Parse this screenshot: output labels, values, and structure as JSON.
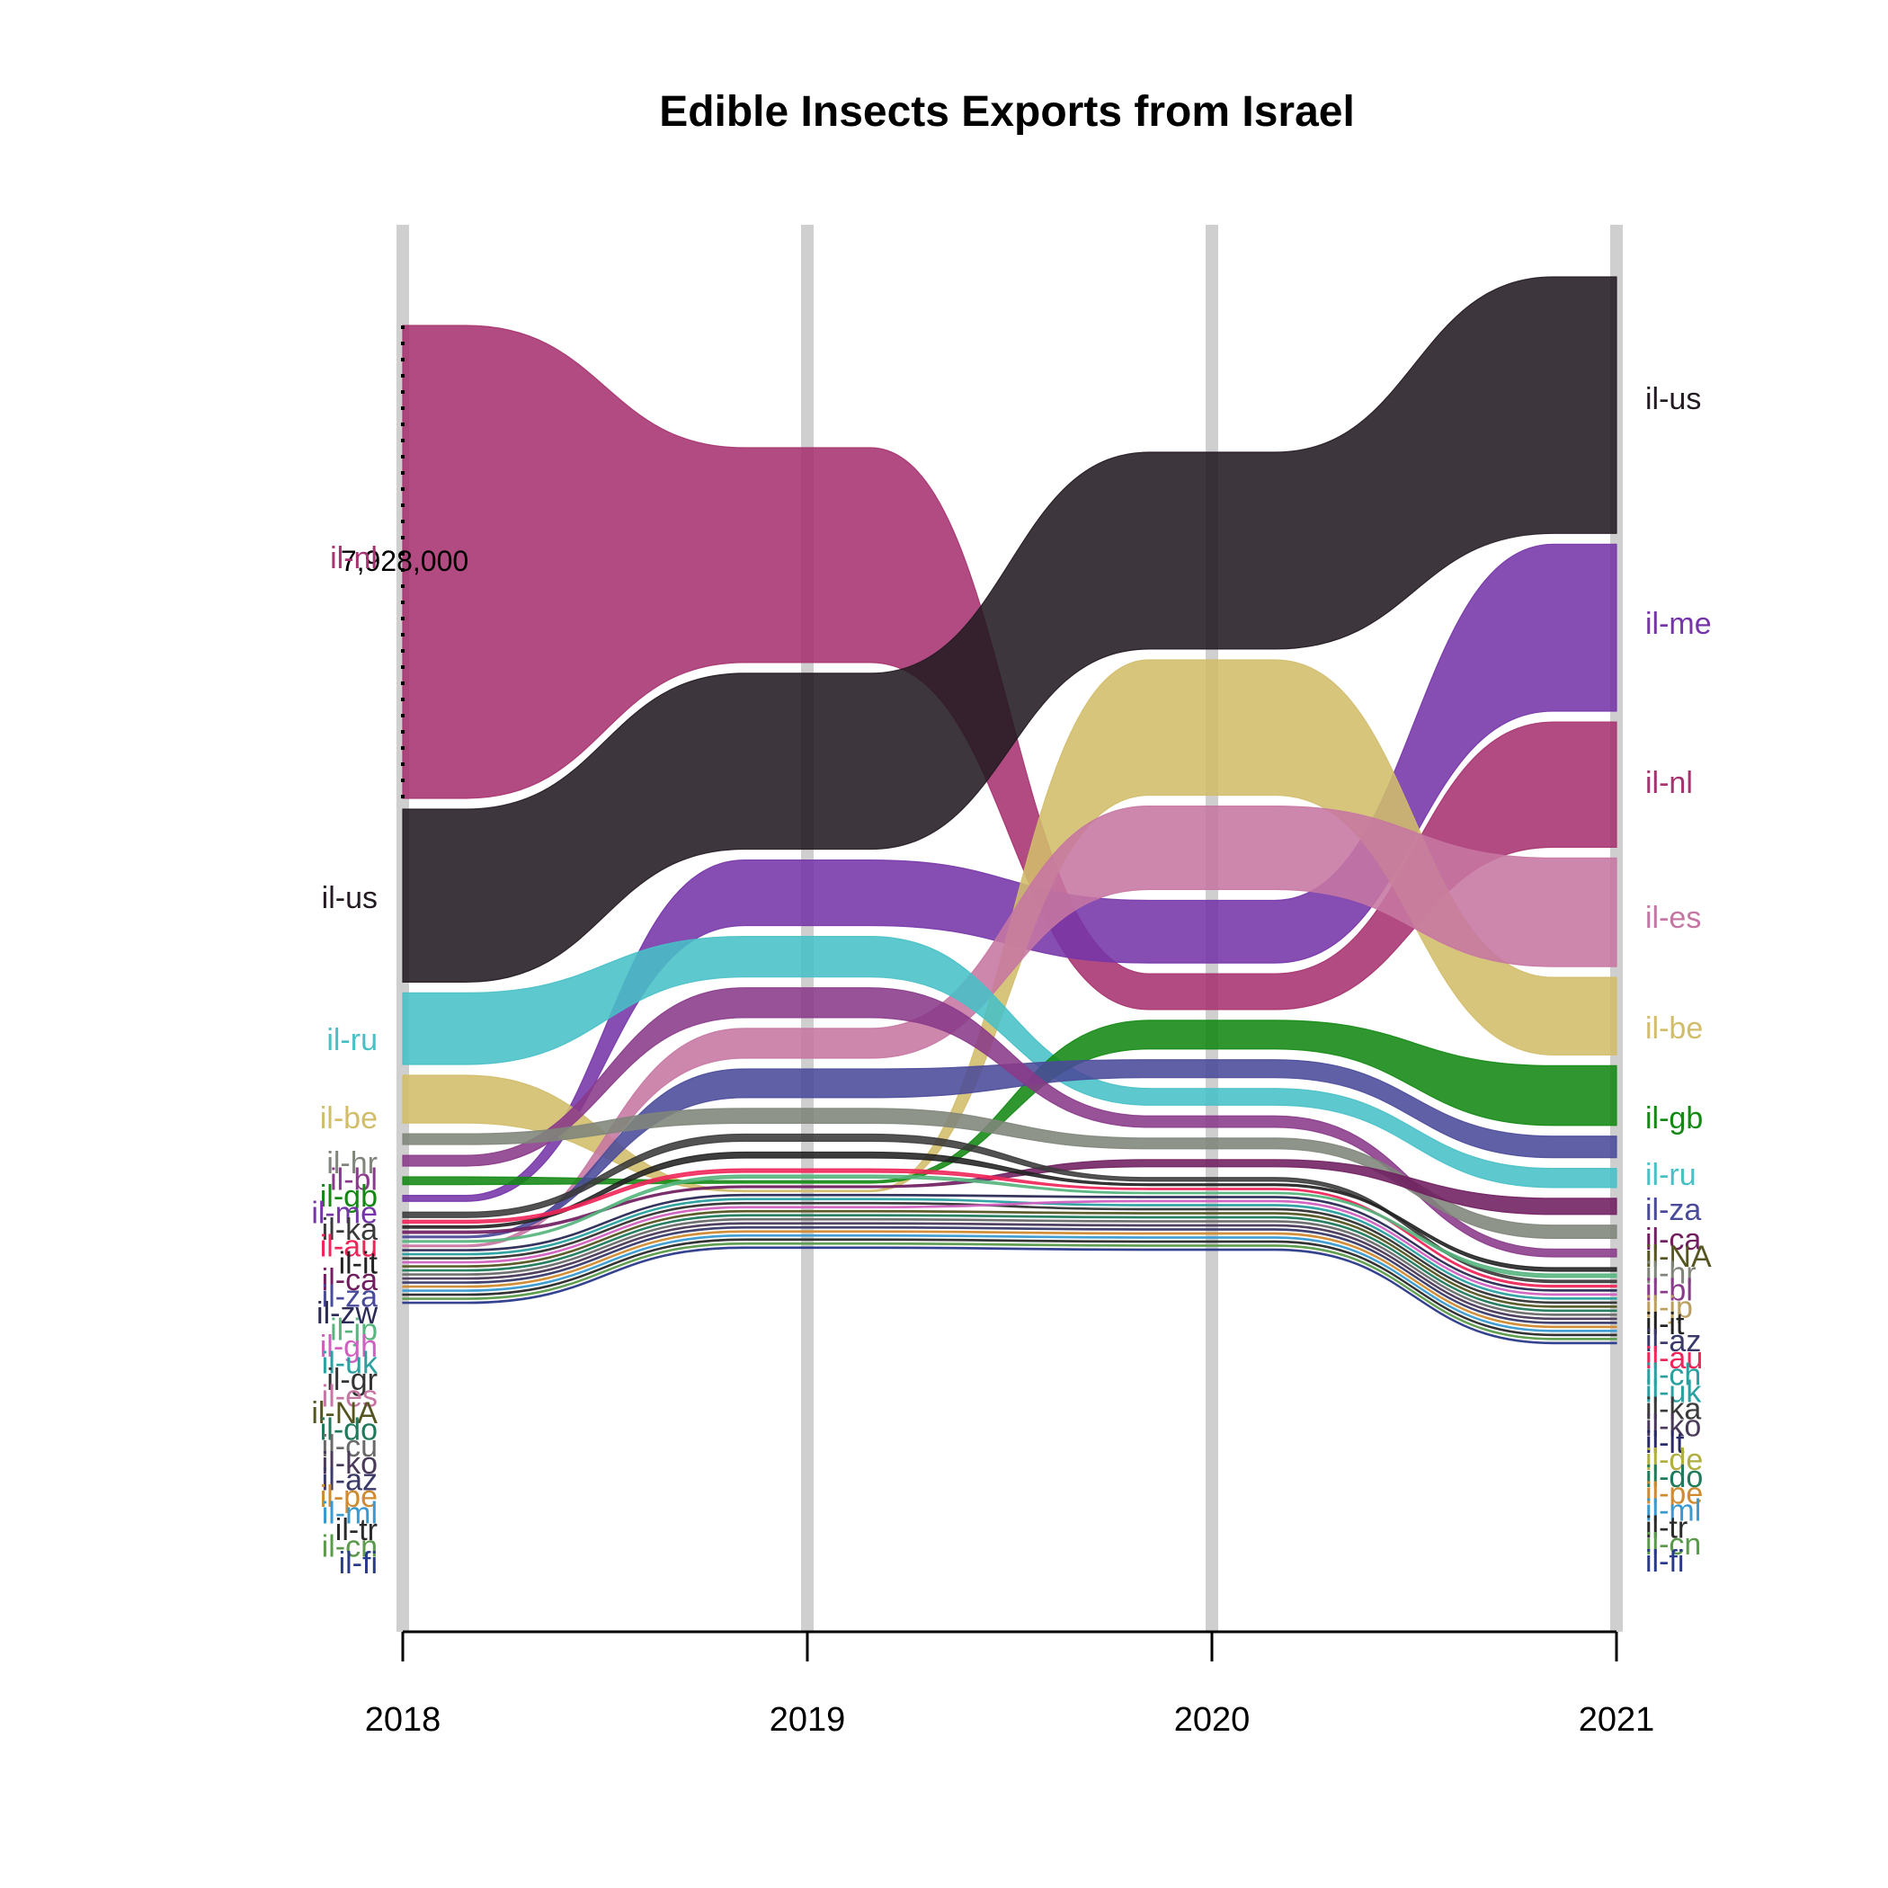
{
  "chart_data": {
    "type": "bump-area",
    "title": "Edible Insects Exports from Israel",
    "xlabel": "",
    "ylabel": "",
    "x": [
      "2018",
      "2019",
      "2020",
      "2021"
    ],
    "scale_label": "7,928,000",
    "scale_value": 7928000,
    "value_units": "relative (scale bar = 7,928,000)",
    "series": [
      {
        "name": "il-nl",
        "color": "#a6326f",
        "values": [
          7928000,
          3600000,
          600000,
          2100000
        ]
      },
      {
        "name": "il-us",
        "color": "#231a22",
        "values": [
          2900000,
          2950000,
          3300000,
          4300000
        ]
      },
      {
        "name": "il-ru",
        "color": "#47c0c6",
        "values": [
          1200000,
          680000,
          280000,
          320000
        ]
      },
      {
        "name": "il-be",
        "color": "#d2bd6a",
        "values": [
          800000,
          20000,
          2270000,
          1300000
        ]
      },
      {
        "name": "il-hr",
        "color": "#80857b",
        "values": [
          180000,
          250000,
          180000,
          220000
        ]
      },
      {
        "name": "il-bl",
        "color": "#8a3a8a",
        "values": [
          180000,
          500000,
          190000,
          130000
        ]
      },
      {
        "name": "il-gb",
        "color": "#138913",
        "values": [
          130000,
          40000,
          480000,
          1000000
        ]
      },
      {
        "name": "il-me",
        "color": "#7535a8",
        "values": [
          100000,
          1100000,
          1050000,
          2800000
        ]
      },
      {
        "name": "il-ka",
        "color": "#3a3a3a",
        "values": [
          90000,
          120000,
          60000,
          40000
        ]
      },
      {
        "name": "il-au",
        "color": "#f0265a",
        "values": [
          50000,
          60000,
          20000,
          30000
        ]
      },
      {
        "name": "il-it",
        "color": "#222222",
        "values": [
          40000,
          100000,
          30000,
          60000
        ]
      },
      {
        "name": "il-ca",
        "color": "#701e60",
        "values": [
          40000,
          30000,
          120000,
          270000
        ]
      },
      {
        "name": "il-za",
        "color": "#4a4a9a",
        "values": [
          30000,
          480000,
          300000,
          360000
        ]
      },
      {
        "name": "il-zw",
        "color": "#2a2a55",
        "values": [
          20000,
          20000,
          10000,
          10000
        ]
      },
      {
        "name": "il-jp",
        "color": "#57b57d",
        "values": [
          30000,
          50000,
          20000,
          60000
        ]
      },
      {
        "name": "il-gh",
        "color": "#d060c0",
        "values": [
          10000,
          10000,
          10000,
          10000
        ]
      },
      {
        "name": "il-uk",
        "color": "#2aa0a0",
        "values": [
          20000,
          20000,
          10000,
          10000
        ]
      },
      {
        "name": "il-gr",
        "color": "#333333",
        "values": [
          20000,
          20000,
          10000,
          10000
        ]
      },
      {
        "name": "il-es",
        "color": "#c676a2",
        "values": [
          30000,
          500000,
          1400000,
          1820000
        ]
      },
      {
        "name": "il-NA",
        "color": "#555522",
        "values": [
          10000,
          10000,
          10000,
          10000
        ]
      },
      {
        "name": "il-do",
        "color": "#1f7a5a",
        "values": [
          10000,
          10000,
          10000,
          10000
        ]
      },
      {
        "name": "il-cu",
        "color": "#6a6a6a",
        "values": [
          10000,
          10000,
          10000,
          10000
        ]
      },
      {
        "name": "il-ko",
        "color": "#4a3a5a",
        "values": [
          10000,
          10000,
          10000,
          10000
        ]
      },
      {
        "name": "il-az",
        "color": "#3a3a6a",
        "values": [
          10000,
          10000,
          10000,
          10000
        ]
      },
      {
        "name": "il-pe",
        "color": "#d08a30",
        "values": [
          10000,
          10000,
          10000,
          10000
        ]
      },
      {
        "name": "il-ml",
        "color": "#3a9ad0",
        "values": [
          10000,
          10000,
          10000,
          10000
        ]
      },
      {
        "name": "il-tr",
        "color": "#2a2a2a",
        "values": [
          10000,
          10000,
          10000,
          10000
        ]
      },
      {
        "name": "il-cn",
        "color": "#5a9a4a",
        "values": [
          10000,
          10000,
          10000,
          10000
        ]
      },
      {
        "name": "il-fi",
        "color": "#2a3a8a",
        "values": [
          10000,
          10000,
          10000,
          10000
        ]
      }
    ],
    "left_labels": [
      {
        "name": "il-nl",
        "color": "#a6326f"
      },
      {
        "name": "il-us",
        "color": "#231a22"
      },
      {
        "name": "il-ru",
        "color": "#47c0c6"
      },
      {
        "name": "il-be",
        "color": "#d2bd6a"
      },
      {
        "name": "il-hr",
        "color": "#80857b"
      },
      {
        "name": "il-bl",
        "color": "#8a3a8a"
      },
      {
        "name": "il-gb",
        "color": "#138913"
      },
      {
        "name": "il-me",
        "color": "#7535a8"
      },
      {
        "name": "il-ka",
        "color": "#3a3a3a"
      },
      {
        "name": "il-au",
        "color": "#f0265a"
      },
      {
        "name": "il-it",
        "color": "#222222"
      },
      {
        "name": "il-ca",
        "color": "#701e60"
      },
      {
        "name": "il-za",
        "color": "#4a4a9a"
      },
      {
        "name": "il-zw",
        "color": "#2a2a55"
      },
      {
        "name": "il-jp",
        "color": "#57b57d"
      },
      {
        "name": "il-gh",
        "color": "#d060c0"
      },
      {
        "name": "il-uk",
        "color": "#2aa0a0"
      },
      {
        "name": "il-gr",
        "color": "#333333"
      },
      {
        "name": "il-es",
        "color": "#c676a2"
      },
      {
        "name": "il-NA",
        "color": "#555522"
      },
      {
        "name": "il-do",
        "color": "#1f7a5a"
      },
      {
        "name": "il-cu",
        "color": "#6a6a6a"
      },
      {
        "name": "il-ko",
        "color": "#4a3a5a"
      },
      {
        "name": "il-az",
        "color": "#3a3a6a"
      },
      {
        "name": "il-pe",
        "color": "#d08a30"
      },
      {
        "name": "il-ml",
        "color": "#3a9ad0"
      },
      {
        "name": "il-tr",
        "color": "#2a2a2a"
      },
      {
        "name": "il-cn",
        "color": "#5a9a4a"
      },
      {
        "name": "il-fi",
        "color": "#2a3a8a"
      }
    ],
    "right_labels": [
      {
        "name": "il-us",
        "color": "#231a22"
      },
      {
        "name": "il-me",
        "color": "#7535a8"
      },
      {
        "name": "il-nl",
        "color": "#a6326f"
      },
      {
        "name": "il-es",
        "color": "#c676a2"
      },
      {
        "name": "il-be",
        "color": "#d2bd6a"
      },
      {
        "name": "il-gb",
        "color": "#138913"
      },
      {
        "name": "il-ru",
        "color": "#47c0c6"
      },
      {
        "name": "il-za",
        "color": "#4a4a9a"
      },
      {
        "name": "il-ca",
        "color": "#701e60"
      },
      {
        "name": "il-NA",
        "color": "#555522"
      },
      {
        "name": "il-hr",
        "color": "#80857b"
      },
      {
        "name": "il-bl",
        "color": "#8a3a8a"
      },
      {
        "name": "il-jp",
        "color": "#bba060"
      },
      {
        "name": "il-it",
        "color": "#222222"
      },
      {
        "name": "il-az",
        "color": "#3a3a6a"
      },
      {
        "name": "il-au",
        "color": "#f0265a"
      },
      {
        "name": "il-ch",
        "color": "#2aa0a0"
      },
      {
        "name": "il-uk",
        "color": "#2aa0a0"
      },
      {
        "name": "il-ka",
        "color": "#3a3a3a"
      },
      {
        "name": "il-ko",
        "color": "#4a3a5a"
      },
      {
        "name": "il-lt",
        "color": "#2a2a6a"
      },
      {
        "name": "il-de",
        "color": "#b0b040"
      },
      {
        "name": "il-do",
        "color": "#1f7a5a"
      },
      {
        "name": "il-pe",
        "color": "#d08a30"
      },
      {
        "name": "il-ml",
        "color": "#3a9ad0"
      },
      {
        "name": "il-tr",
        "color": "#2a2a2a"
      },
      {
        "name": "il-cn",
        "color": "#5a9a4a"
      },
      {
        "name": "il-fi",
        "color": "#2a3a8a"
      }
    ],
    "grid": false,
    "legend": "none"
  }
}
